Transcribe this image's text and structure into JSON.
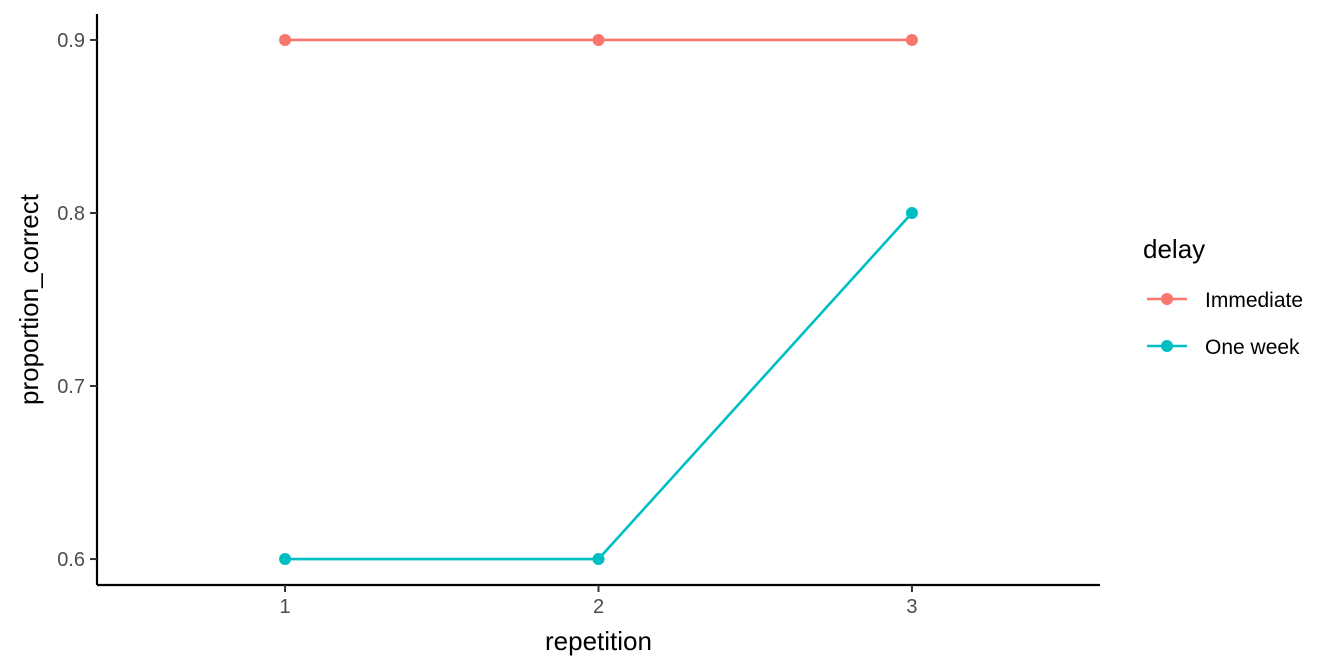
{
  "chart_data": {
    "type": "line",
    "x": [
      1,
      2,
      3
    ],
    "xlabel": "repetition",
    "ylabel": "proportion_correct",
    "xlim": [
      0.4,
      3.6
    ],
    "ylim": [
      0.585,
      0.915
    ],
    "x_ticks": [
      "1",
      "2",
      "3"
    ],
    "y_ticks": [
      "0.6",
      "0.7",
      "0.8",
      "0.9"
    ],
    "grid": false,
    "legend": {
      "title": "delay",
      "position": "right"
    },
    "series": [
      {
        "name": "Immediate",
        "color": "#F8766D",
        "values": [
          0.9,
          0.9,
          0.9
        ]
      },
      {
        "name": "One week",
        "color": "#00BFC4",
        "values": [
          0.6,
          0.6,
          0.8
        ]
      }
    ]
  }
}
